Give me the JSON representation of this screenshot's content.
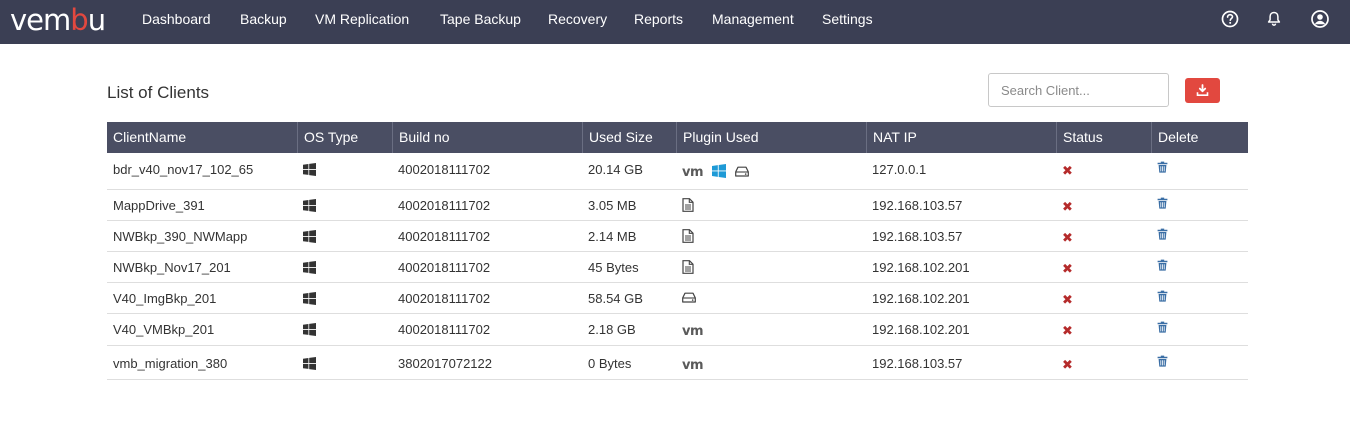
{
  "app": {
    "logo_main": "vem",
    "logo_accent": "b",
    "logo_end": "u"
  },
  "nav": {
    "items": [
      {
        "label": "Dashboard"
      },
      {
        "label": "Backup"
      },
      {
        "label": "VM Replication"
      },
      {
        "label": "Tape Backup"
      },
      {
        "label": "Recovery"
      },
      {
        "label": "Reports"
      },
      {
        "label": "Management"
      },
      {
        "label": "Settings"
      }
    ],
    "icons": [
      "help-icon",
      "bell-icon",
      "user-icon"
    ]
  },
  "page": {
    "title": "List of Clients",
    "search_placeholder": "Search Client...",
    "download_icon": "download-icon"
  },
  "table": {
    "columns": [
      "ClientName",
      "OS Type",
      "Build no",
      "Used Size",
      "Plugin Used",
      "NAT IP",
      "Status",
      "Delete"
    ],
    "rows": [
      {
        "name": "bdr_v40_nov17_102_65",
        "os": "windows",
        "build": "4002018111702",
        "size": "20.14 GB",
        "plugins": [
          "vmware",
          "windows",
          "drive"
        ],
        "ip": "127.0.0.1",
        "status": "✖"
      },
      {
        "name": "MappDrive_391",
        "os": "windows",
        "build": "4002018111702",
        "size": "3.05 MB",
        "plugins": [
          "file"
        ],
        "ip": "192.168.103.57",
        "status": "✖"
      },
      {
        "name": "NWBkp_390_NWMapp",
        "os": "windows",
        "build": "4002018111702",
        "size": "2.14 MB",
        "plugins": [
          "file"
        ],
        "ip": "192.168.103.57",
        "status": "✖"
      },
      {
        "name": "NWBkp_Nov17_201",
        "os": "windows",
        "build": "4002018111702",
        "size": "45 Bytes",
        "plugins": [
          "file"
        ],
        "ip": "192.168.102.201",
        "status": "✖"
      },
      {
        "name": "V40_ImgBkp_201",
        "os": "windows",
        "build": "4002018111702",
        "size": "58.54 GB",
        "plugins": [
          "drive"
        ],
        "ip": "192.168.102.201",
        "status": "✖"
      },
      {
        "name": "V40_VMBkp_201",
        "os": "windows",
        "build": "4002018111702",
        "size": "2.18 GB",
        "plugins": [
          "vmware"
        ],
        "ip": "192.168.102.201",
        "status": "✖"
      },
      {
        "name": "vmb_migration_380",
        "os": "windows",
        "build": "3802017072122",
        "size": "0 Bytes",
        "plugins": [
          "vmware"
        ],
        "ip": "192.168.103.57",
        "status": "✖"
      }
    ],
    "vm_mark": "vm"
  },
  "colors": {
    "nav_bg": "#3b3f54",
    "header_bg": "#4a4e63",
    "accent": "#e2483f",
    "windows_blue": "#1e9ad6",
    "delete_blue": "#3a6ea5",
    "status_red": "#b52b2b"
  }
}
